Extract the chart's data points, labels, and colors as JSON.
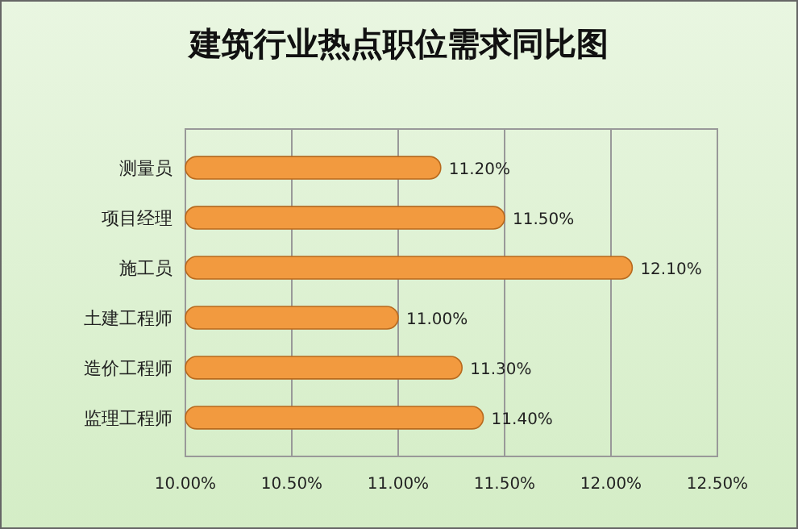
{
  "chart_data": {
    "type": "bar",
    "orientation": "horizontal",
    "title": "建筑行业热点职位需求同比图",
    "categories": [
      "测量员",
      "项目经理",
      "施工员",
      "土建工程师",
      "造价工程师",
      "监理工程师"
    ],
    "values": [
      11.2,
      11.5,
      12.1,
      11.0,
      11.3,
      11.4
    ],
    "value_labels": [
      "11.20%",
      "11.50%",
      "12.10%",
      "11.00%",
      "11.30%",
      "11.40%"
    ],
    "color": "#f29a3f",
    "xlim": [
      10,
      12.5
    ],
    "xticks": [
      {
        "value": 10,
        "label": "10.00%"
      },
      {
        "value": 10.5,
        "label": "10.50%"
      },
      {
        "value": 11,
        "label": "11.00%"
      },
      {
        "value": 11.5,
        "label": "11.50%"
      },
      {
        "value": 12,
        "label": "12.00%"
      },
      {
        "value": 12.5,
        "label": "12.50%"
      }
    ],
    "grid": "x"
  }
}
